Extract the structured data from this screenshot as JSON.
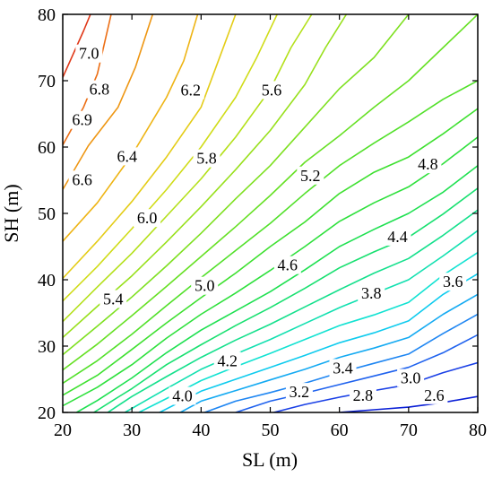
{
  "chart_data": {
    "type": "contour",
    "xlabel": "SL (m)",
    "ylabel": "SH (m)",
    "xlim": [
      20,
      80
    ],
    "ylim": [
      20,
      80
    ],
    "xticks": [
      20,
      30,
      40,
      50,
      60,
      70,
      80
    ],
    "yticks": [
      20,
      30,
      40,
      50,
      60,
      70,
      80
    ],
    "grid": false,
    "colormap": "jet",
    "levels": [
      {
        "value": 2.6,
        "label": "2.6",
        "color": "#0a1fd6",
        "points": [
          [
            60,
            20
          ],
          [
            65,
            20.4
          ],
          [
            70,
            20.8
          ],
          [
            75,
            21.5
          ],
          [
            80,
            22.4
          ]
        ]
      },
      {
        "value": 2.8,
        "label": "2.8",
        "color": "#1a40e6",
        "points": [
          [
            50.5,
            20
          ],
          [
            55,
            21.2
          ],
          [
            60,
            22.3
          ],
          [
            65,
            23.3
          ],
          [
            70,
            24.2
          ],
          [
            75,
            26
          ],
          [
            80,
            27.5
          ]
        ]
      },
      {
        "value": 3.0,
        "label": "3.0",
        "color": "#1f62ee",
        "points": [
          [
            45,
            20
          ],
          [
            50,
            21.7
          ],
          [
            55,
            22.9
          ],
          [
            60,
            24.2
          ],
          [
            65,
            25.5
          ],
          [
            70,
            26.8
          ],
          [
            75,
            29
          ],
          [
            80,
            31.7
          ]
        ]
      },
      {
        "value": 3.2,
        "label": "3.2",
        "color": "#1f86f2",
        "points": [
          [
            40.5,
            20
          ],
          [
            45,
            21.7
          ],
          [
            50,
            23
          ],
          [
            55,
            24.4
          ],
          [
            60,
            26
          ],
          [
            65,
            27.4
          ],
          [
            70,
            28.8
          ],
          [
            75,
            31.9
          ],
          [
            80,
            34.8
          ]
        ]
      },
      {
        "value": 3.4,
        "label": "3.4",
        "color": "#14aaf2",
        "points": [
          [
            37,
            20
          ],
          [
            40,
            21.7
          ],
          [
            45,
            23.3
          ],
          [
            50,
            24.9
          ],
          [
            55,
            26.5
          ],
          [
            60,
            28.3
          ],
          [
            65,
            29.7
          ],
          [
            70,
            31.3
          ],
          [
            75,
            34.8
          ],
          [
            80,
            37.8
          ]
        ]
      },
      {
        "value": 3.6,
        "label": "3.6",
        "color": "#0ecbee",
        "points": [
          [
            34,
            20
          ],
          [
            37,
            21.6
          ],
          [
            40,
            23.2
          ],
          [
            45,
            25
          ],
          [
            50,
            26.8
          ],
          [
            55,
            28.6
          ],
          [
            60,
            30.5
          ],
          [
            65,
            32
          ],
          [
            70,
            33.8
          ],
          [
            75,
            37.8
          ],
          [
            80,
            40.9
          ]
        ]
      },
      {
        "value": 3.8,
        "label": "3.8",
        "color": "#12e2d2",
        "points": [
          [
            31,
            20
          ],
          [
            35,
            22.1
          ],
          [
            40,
            24.8
          ],
          [
            45,
            26.9
          ],
          [
            50,
            28.9
          ],
          [
            55,
            31
          ],
          [
            60,
            33.1
          ],
          [
            65,
            34.7
          ],
          [
            70,
            36.6
          ],
          [
            75,
            40.7
          ],
          [
            80,
            44.1
          ]
        ]
      },
      {
        "value": 4.0,
        "label": "4.0",
        "color": "#12e0b0",
        "points": [
          [
            29,
            20
          ],
          [
            32,
            21.8
          ],
          [
            35,
            23.6
          ],
          [
            40,
            26.5
          ],
          [
            45,
            28.8
          ],
          [
            50,
            31
          ],
          [
            55,
            33.4
          ],
          [
            60,
            35.8
          ],
          [
            65,
            37.9
          ],
          [
            70,
            40
          ],
          [
            75,
            43.6
          ],
          [
            80,
            47.4
          ]
        ]
      },
      {
        "value": 4.2,
        "label": "4.2",
        "color": "#14e08c",
        "points": [
          [
            26.5,
            20
          ],
          [
            30,
            22.4
          ],
          [
            35,
            25.4
          ],
          [
            40,
            28.3
          ],
          [
            45,
            30.9
          ],
          [
            50,
            33.3
          ],
          [
            55,
            35.9
          ],
          [
            60,
            38.5
          ],
          [
            65,
            41
          ],
          [
            70,
            43.2
          ],
          [
            75,
            46.7
          ],
          [
            80,
            50.5
          ]
        ]
      },
      {
        "value": 4.4,
        "label": "4.4",
        "color": "#18e070",
        "points": [
          [
            24.5,
            20
          ],
          [
            28,
            22.3
          ],
          [
            30,
            23.6
          ],
          [
            35,
            27.2
          ],
          [
            40,
            30.2
          ],
          [
            45,
            33.1
          ],
          [
            50,
            35.8
          ],
          [
            55,
            38.7
          ],
          [
            60,
            41.8
          ],
          [
            65,
            44.2
          ],
          [
            70,
            46.4
          ],
          [
            75,
            49.9
          ],
          [
            80,
            53.8
          ]
        ]
      },
      {
        "value": 4.6,
        "label": "4.6",
        "color": "#1ee050",
        "points": [
          [
            22,
            20
          ],
          [
            25,
            21.8
          ],
          [
            30,
            25.2
          ],
          [
            35,
            29
          ],
          [
            40,
            32.4
          ],
          [
            45,
            35.3
          ],
          [
            50,
            38.2
          ],
          [
            55,
            41.5
          ],
          [
            60,
            45
          ],
          [
            65,
            47.6
          ],
          [
            70,
            50
          ],
          [
            75,
            53.2
          ],
          [
            80,
            57.2
          ]
        ]
      },
      {
        "value": 4.8,
        "label": "4.8",
        "color": "#2ee03c",
        "points": [
          [
            20,
            21
          ],
          [
            25,
            23.8
          ],
          [
            30,
            27.2
          ],
          [
            35,
            31.2
          ],
          [
            40,
            34.8
          ],
          [
            45,
            38
          ],
          [
            50,
            41.4
          ],
          [
            55,
            45
          ],
          [
            60,
            48.8
          ],
          [
            65,
            51.6
          ],
          [
            70,
            54
          ],
          [
            75,
            57.5
          ],
          [
            80,
            61.5
          ]
        ]
      },
      {
        "value": 5.0,
        "label": "5.0",
        "color": "#3ee030",
        "points": [
          [
            20,
            22.6
          ],
          [
            25,
            25.6
          ],
          [
            30,
            29.5
          ],
          [
            35,
            33.5
          ],
          [
            40,
            37.3
          ],
          [
            45,
            41
          ],
          [
            50,
            45
          ],
          [
            55,
            48.7
          ],
          [
            60,
            53
          ],
          [
            65,
            56.2
          ],
          [
            70,
            58.5
          ],
          [
            75,
            62
          ],
          [
            80,
            65.8
          ]
        ]
      },
      {
        "value": 5.2,
        "label": "5.2",
        "color": "#52e02a",
        "points": [
          [
            20,
            24.4
          ],
          [
            25,
            27.8
          ],
          [
            30,
            31.8
          ],
          [
            35,
            36.1
          ],
          [
            40,
            40.3
          ],
          [
            45,
            44.4
          ],
          [
            50,
            48.5
          ],
          [
            55,
            53
          ],
          [
            60,
            57.2
          ],
          [
            65,
            60.6
          ],
          [
            70,
            63.8
          ],
          [
            75,
            67.2
          ],
          [
            80,
            70
          ]
        ]
      },
      {
        "value": 5.4,
        "label": "5.4",
        "color": "#66e024",
        "points": [
          [
            20,
            26.4
          ],
          [
            25,
            30.3
          ],
          [
            30,
            34.6
          ],
          [
            35,
            39
          ],
          [
            40,
            43.5
          ],
          [
            45,
            48
          ],
          [
            50,
            52.7
          ],
          [
            55,
            57.7
          ],
          [
            60,
            61.7
          ],
          [
            65,
            66
          ],
          [
            70,
            70
          ],
          [
            75,
            75
          ],
          [
            80,
            80
          ]
        ]
      },
      {
        "value": 5.6,
        "label": "5.6",
        "color": "#7ee020",
        "points": [
          [
            20,
            28.7
          ],
          [
            25,
            33
          ],
          [
            30,
            37.4
          ],
          [
            35,
            42.1
          ],
          [
            40,
            47
          ],
          [
            45,
            52.2
          ],
          [
            50,
            57.2
          ],
          [
            55,
            63
          ],
          [
            60,
            68.8
          ],
          [
            65,
            73.5
          ],
          [
            70,
            80
          ]
        ]
      },
      {
        "value": 5.8,
        "label": "5.8",
        "color": "#98e01c",
        "points": [
          [
            20,
            31.3
          ],
          [
            25,
            36
          ],
          [
            30,
            40.6
          ],
          [
            35,
            45.7
          ],
          [
            40,
            51
          ],
          [
            45,
            56.6
          ],
          [
            50,
            62.5
          ],
          [
            55,
            69.4
          ],
          [
            58,
            75
          ],
          [
            61,
            80
          ]
        ]
      },
      {
        "value": 6.0,
        "label": "6.0",
        "color": "#b4e01a",
        "points": [
          [
            20,
            33.7
          ],
          [
            25,
            38.9
          ],
          [
            30,
            44
          ],
          [
            35,
            49.6
          ],
          [
            40,
            55.2
          ],
          [
            45,
            61.5
          ],
          [
            50,
            68.7
          ],
          [
            53,
            75
          ],
          [
            56,
            80
          ]
        ]
      },
      {
        "value": 6.2,
        "label": "6.2",
        "color": "#d0dc18",
        "points": [
          [
            20,
            36.8
          ],
          [
            25,
            42
          ],
          [
            30,
            47.7
          ],
          [
            35,
            53.6
          ],
          [
            40,
            60
          ],
          [
            45,
            67.5
          ],
          [
            48,
            73.4
          ],
          [
            51,
            80
          ]
        ]
      },
      {
        "value": 6.4,
        "label": "6.4",
        "color": "#e4cc16",
        "points": [
          [
            20,
            40.2
          ],
          [
            25,
            45.8
          ],
          [
            30,
            51.8
          ],
          [
            35,
            58.5
          ],
          [
            40,
            66
          ],
          [
            42.5,
            73
          ],
          [
            45,
            80
          ]
        ]
      },
      {
        "value": 6.6,
        "label": "6.6",
        "color": "#eeb414",
        "points": [
          [
            20,
            45.8
          ],
          [
            25,
            51.6
          ],
          [
            30,
            58.8
          ],
          [
            35,
            67.5
          ],
          [
            37.5,
            73
          ],
          [
            39.5,
            80
          ]
        ]
      },
      {
        "value": 6.8,
        "label": "6.8",
        "color": "#ee9612",
        "points": [
          [
            20,
            53.6
          ],
          [
            23.7,
            60.2
          ],
          [
            28,
            66
          ],
          [
            30.5,
            72
          ],
          [
            33,
            80
          ]
        ]
      },
      {
        "value": 6.9,
        "label": "6.9",
        "color": "#ec6e14",
        "points": [
          [
            20,
            60.3
          ],
          [
            23,
            66
          ],
          [
            25,
            71
          ],
          [
            27,
            80
          ]
        ]
      },
      {
        "value": 7.0,
        "label": "7.0",
        "color": "#e03818",
        "points": [
          [
            20,
            70.5
          ],
          [
            21.5,
            74
          ],
          [
            23,
            77.5
          ],
          [
            24,
            80
          ]
        ]
      }
    ],
    "labels": [
      {
        "text": "7.0",
        "x": 23.8,
        "y": 74.1
      },
      {
        "text": "6.8",
        "x": 25.3,
        "y": 68.7
      },
      {
        "text": "6.9",
        "x": 22.8,
        "y": 64.1
      },
      {
        "text": "6.6",
        "x": 22.8,
        "y": 55.1
      },
      {
        "text": "6.4",
        "x": 29.3,
        "y": 58.6
      },
      {
        "text": "6.2",
        "x": 38.5,
        "y": 68.6
      },
      {
        "text": "6.0",
        "x": 32.2,
        "y": 49.3
      },
      {
        "text": "5.8",
        "x": 40.8,
        "y": 58.3
      },
      {
        "text": "5.6",
        "x": 50.2,
        "y": 68.6
      },
      {
        "text": "5.4",
        "x": 27.3,
        "y": 37.1
      },
      {
        "text": "5.0",
        "x": 40.5,
        "y": 39.1
      },
      {
        "text": "5.2",
        "x": 55.8,
        "y": 55.7
      },
      {
        "text": "4.8",
        "x": 72.8,
        "y": 57.4
      },
      {
        "text": "4.6",
        "x": 52.5,
        "y": 42.2
      },
      {
        "text": "4.4",
        "x": 68.4,
        "y": 46.5
      },
      {
        "text": "4.2",
        "x": 43.8,
        "y": 27.8
      },
      {
        "text": "3.8",
        "x": 64.6,
        "y": 38.0
      },
      {
        "text": "3.6",
        "x": 76.4,
        "y": 39.7
      },
      {
        "text": "4.0",
        "x": 37.3,
        "y": 22.5
      },
      {
        "text": "3.4",
        "x": 60.5,
        "y": 26.7
      },
      {
        "text": "3.2",
        "x": 54.2,
        "y": 23.1
      },
      {
        "text": "3.0",
        "x": 70.3,
        "y": 25.2
      },
      {
        "text": "2.8",
        "x": 63.4,
        "y": 22.6
      },
      {
        "text": "2.6",
        "x": 73.7,
        "y": 22.6
      }
    ]
  }
}
